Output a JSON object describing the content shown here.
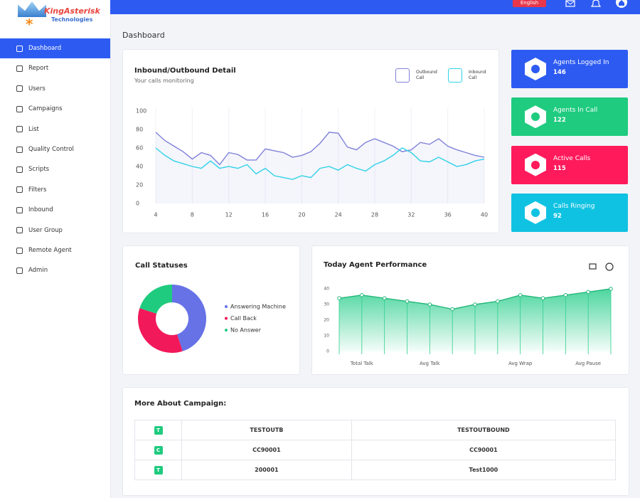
{
  "logo": {
    "name": "KingAsterisk",
    "sub": "Technologies"
  },
  "header": {
    "language": "English"
  },
  "sidebar": [
    "Dashboard",
    "Report",
    "Users",
    "Campaigns",
    "List",
    "Quality Control",
    "Scripts",
    "Filters",
    "Inbound",
    "User Group",
    "Remote Agent",
    "Admin"
  ],
  "page_title": "Dashboard",
  "stats": [
    {
      "label": "Agents Logged In",
      "value": 146,
      "color": "#2d5bf2"
    },
    {
      "label": "Agents In Call",
      "value": 122,
      "color": "#1fcb7f"
    },
    {
      "label": "Active Calls",
      "value": 115,
      "color": "#ff1a5c"
    },
    {
      "label": "Calls Ringing",
      "value": 92,
      "color": "#10c2e2"
    }
  ],
  "inbound_chart": {
    "type": "line",
    "title": "Inbound/Outbound Detail",
    "subtitle": "Your calls monitoring",
    "x": [
      4,
      5,
      6,
      7,
      8,
      9,
      10,
      11,
      12,
      13,
      14,
      15,
      16,
      17,
      18,
      19,
      20,
      21,
      22,
      23,
      24,
      25,
      26,
      27,
      28,
      29,
      30,
      31,
      32,
      33,
      34,
      35,
      36,
      37,
      38,
      39,
      40
    ],
    "series": [
      {
        "name": "Outbound Call",
        "color": "#7f82d8",
        "values": [
          77,
          68,
          62,
          56,
          48,
          55,
          52,
          42,
          55,
          53,
          47,
          47,
          59,
          57,
          55,
          50,
          52,
          56,
          65,
          77,
          76,
          61,
          58,
          66,
          70,
          66,
          62,
          56,
          58,
          66,
          64,
          70,
          62,
          58,
          55,
          52,
          50
        ]
      },
      {
        "name": "Inbound Call",
        "color": "#2fd3e6",
        "values": [
          60,
          52,
          46,
          43,
          40,
          38,
          46,
          38,
          40,
          38,
          42,
          32,
          38,
          30,
          28,
          26,
          30,
          28,
          38,
          40,
          36,
          42,
          38,
          35,
          42,
          46,
          52,
          60,
          55,
          46,
          45,
          50,
          45,
          40,
          42,
          46,
          48
        ]
      }
    ],
    "xlim": [
      4,
      40
    ],
    "xticks": [
      4,
      8,
      12,
      16,
      20,
      24,
      28,
      32,
      36,
      40
    ],
    "ylim": [
      0,
      100
    ],
    "yticks": [
      0,
      20,
      40,
      60,
      80,
      100
    ],
    "grid": "x"
  },
  "statuses_chart": {
    "type": "donut",
    "title": "Call Statuses",
    "categories": [
      "Answering Machine",
      "Call Back",
      "No Answer"
    ],
    "values": [
      45,
      35,
      20
    ],
    "colors": [
      "#6672e6",
      "#f2195a",
      "#1fcb7f"
    ]
  },
  "performance_chart": {
    "type": "area",
    "title": "Today Agent Performance",
    "categories": [
      null,
      "Total Talk",
      null,
      null,
      "Avg Talk",
      null,
      null,
      null,
      "Avg Wrap",
      null,
      null,
      "Avg Pause",
      null
    ],
    "values": [
      34,
      36,
      34,
      32,
      30,
      27,
      30,
      32,
      36,
      34,
      36,
      38,
      40
    ],
    "color": "#2ecf8e",
    "ylim": [
      0,
      40
    ],
    "yticks": [
      0,
      10,
      20,
      30,
      40
    ]
  },
  "campaign": {
    "title": "More About Campaign:",
    "rows": [
      [
        "T",
        "TESTOUTB",
        "TESTOUTBOUND"
      ],
      [
        "C",
        "CC90001",
        "CC90001"
      ],
      [
        "T",
        "200001",
        "Test1000"
      ]
    ]
  }
}
